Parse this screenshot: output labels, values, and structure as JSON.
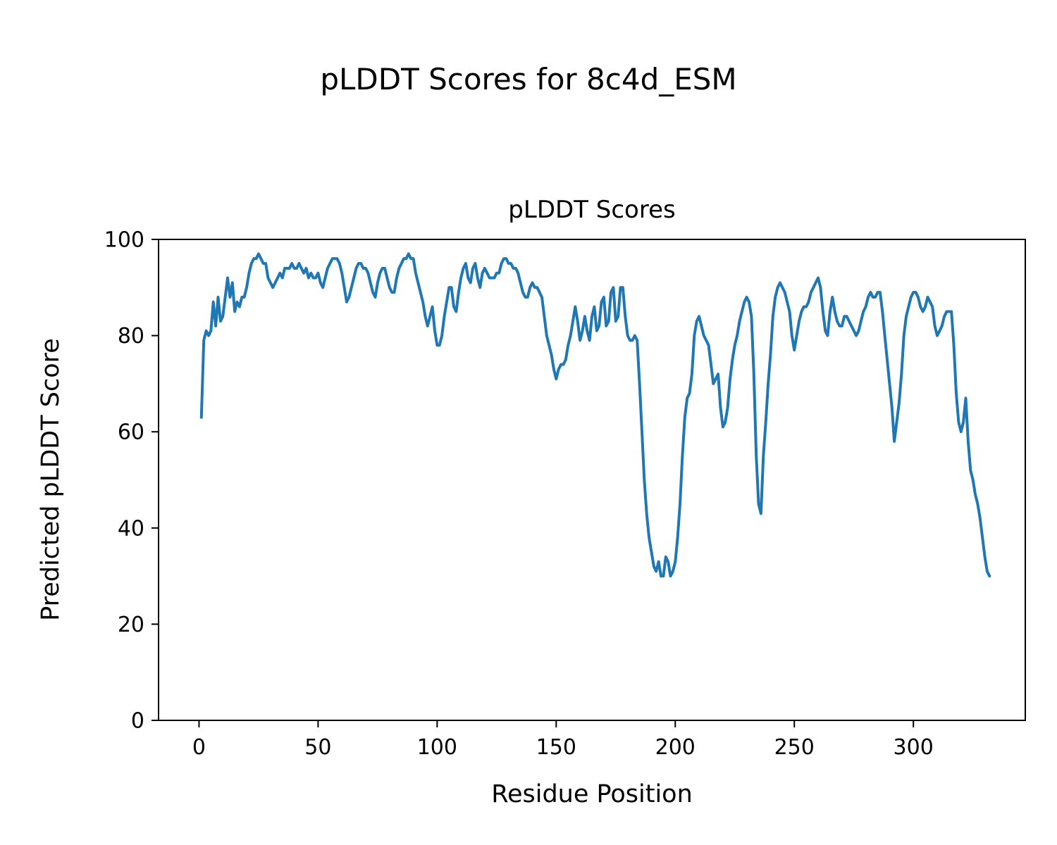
{
  "figure": {
    "suptitle": "pLDDT Scores for 8c4d_ESM"
  },
  "chart_data": {
    "type": "line",
    "title": "pLDDT Scores",
    "xlabel": "Residue Position",
    "ylabel": "Predicted pLDDT Score",
    "xlim": [
      -17,
      347
    ],
    "ylim": [
      0,
      100
    ],
    "x_ticks": [
      0,
      50,
      100,
      150,
      200,
      250,
      300
    ],
    "y_ticks": [
      0,
      20,
      40,
      60,
      80,
      100
    ],
    "grid": false,
    "legend_position": "none",
    "line_color": "#1f77b4",
    "line_width": 4,
    "series_name": "pLDDT",
    "x": [
      1,
      2,
      3,
      4,
      5,
      6,
      7,
      8,
      9,
      10,
      11,
      12,
      13,
      14,
      15,
      16,
      17,
      18,
      19,
      20,
      21,
      22,
      23,
      24,
      25,
      26,
      27,
      28,
      29,
      30,
      31,
      32,
      33,
      34,
      35,
      36,
      37,
      38,
      39,
      40,
      41,
      42,
      43,
      44,
      45,
      46,
      47,
      48,
      49,
      50,
      51,
      52,
      53,
      54,
      55,
      56,
      57,
      58,
      59,
      60,
      61,
      62,
      63,
      64,
      65,
      66,
      67,
      68,
      69,
      70,
      71,
      72,
      73,
      74,
      75,
      76,
      77,
      78,
      79,
      80,
      81,
      82,
      83,
      84,
      85,
      86,
      87,
      88,
      89,
      90,
      91,
      92,
      93,
      94,
      95,
      96,
      97,
      98,
      99,
      100,
      101,
      102,
      103,
      104,
      105,
      106,
      107,
      108,
      109,
      110,
      111,
      112,
      113,
      114,
      115,
      116,
      117,
      118,
      119,
      120,
      121,
      122,
      123,
      124,
      125,
      126,
      127,
      128,
      129,
      130,
      131,
      132,
      133,
      134,
      135,
      136,
      137,
      138,
      139,
      140,
      141,
      142,
      143,
      144,
      145,
      146,
      147,
      148,
      149,
      150,
      151,
      152,
      153,
      154,
      155,
      156,
      157,
      158,
      159,
      160,
      161,
      162,
      163,
      164,
      165,
      166,
      167,
      168,
      169,
      170,
      171,
      172,
      173,
      174,
      175,
      176,
      177,
      178,
      179,
      180,
      181,
      182,
      183,
      184,
      185,
      186,
      187,
      188,
      189,
      190,
      191,
      192,
      193,
      194,
      195,
      196,
      197,
      198,
      199,
      200,
      201,
      202,
      203,
      204,
      205,
      206,
      207,
      208,
      209,
      210,
      211,
      212,
      213,
      214,
      215,
      216,
      217,
      218,
      219,
      220,
      221,
      222,
      223,
      224,
      225,
      226,
      227,
      228,
      229,
      230,
      231,
      232,
      233,
      234,
      235,
      236,
      237,
      238,
      239,
      240,
      241,
      242,
      243,
      244,
      245,
      246,
      247,
      248,
      249,
      250,
      251,
      252,
      253,
      254,
      255,
      256,
      257,
      258,
      259,
      260,
      261,
      262,
      263,
      264,
      265,
      266,
      267,
      268,
      269,
      270,
      271,
      272,
      273,
      274,
      275,
      276,
      277,
      278,
      279,
      280,
      281,
      282,
      283,
      284,
      285,
      286,
      287,
      288,
      289,
      290,
      291,
      292,
      293,
      294,
      295,
      296,
      297,
      298,
      299,
      300,
      301,
      302,
      303,
      304,
      305,
      306,
      307,
      308,
      309,
      310,
      311,
      312,
      313,
      314,
      315,
      316,
      317,
      318,
      319,
      320,
      321,
      322,
      323,
      324,
      325,
      326,
      327,
      328,
      329,
      330,
      331,
      332
    ],
    "y": [
      63,
      79,
      81,
      80,
      81,
      87,
      82,
      88,
      83,
      84,
      88,
      92,
      88,
      91,
      85,
      87,
      86,
      88,
      88,
      90,
      93,
      95,
      96,
      96,
      97,
      96,
      95,
      95,
      92,
      91,
      90,
      91,
      92,
      93,
      92,
      94,
      94,
      94,
      95,
      94,
      94,
      95,
      94,
      93,
      94,
      92,
      93,
      92,
      92,
      93,
      91,
      90,
      92,
      94,
      95,
      96,
      96,
      96,
      95,
      93,
      90,
      87,
      88,
      90,
      92,
      94,
      95,
      95,
      94,
      94,
      93,
      91,
      89,
      88,
      91,
      93,
      94,
      94,
      92,
      90,
      89,
      89,
      92,
      94,
      95,
      96,
      96,
      97,
      96,
      96,
      93,
      91,
      89,
      87,
      84,
      82,
      84,
      86,
      81,
      78,
      78,
      80,
      84,
      87,
      90,
      90,
      86,
      85,
      89,
      92,
      94,
      95,
      92,
      91,
      94,
      95,
      92,
      90,
      93,
      94,
      93,
      92,
      92,
      92,
      93,
      93,
      95,
      96,
      96,
      95,
      95,
      94,
      94,
      93,
      91,
      89,
      88,
      88,
      90,
      91,
      90,
      90,
      89,
      88,
      84,
      80,
      78,
      76,
      73,
      71,
      73,
      74,
      74,
      75,
      78,
      80,
      83,
      86,
      83,
      79,
      81,
      84,
      81,
      79,
      84,
      86,
      81,
      82,
      87,
      88,
      82,
      83,
      89,
      90,
      83,
      84,
      90,
      90,
      84,
      80,
      79,
      79,
      80,
      79,
      70,
      60,
      50,
      43,
      38,
      35,
      32,
      31,
      33,
      30,
      30,
      34,
      33,
      30,
      31,
      33,
      38,
      45,
      55,
      63,
      67,
      68,
      72,
      80,
      83,
      84,
      82,
      80,
      79,
      78,
      74,
      70,
      71,
      72,
      65,
      61,
      62,
      65,
      71,
      75,
      78,
      80,
      83,
      85,
      87,
      88,
      87,
      84,
      72,
      55,
      45,
      43,
      55,
      62,
      70,
      76,
      84,
      88,
      90,
      91,
      90,
      89,
      87,
      85,
      80,
      77,
      80,
      83,
      85,
      86,
      86,
      87,
      89,
      90,
      91,
      92,
      90,
      85,
      81,
      80,
      85,
      88,
      85,
      83,
      82,
      82,
      84,
      84,
      83,
      82,
      81,
      80,
      81,
      83,
      85,
      86,
      88,
      89,
      88,
      88,
      89,
      89,
      85,
      80,
      75,
      70,
      65,
      58,
      62,
      66,
      72,
      80,
      84,
      86,
      88,
      89,
      89,
      88,
      86,
      85,
      86,
      88,
      87,
      86,
      82,
      80,
      81,
      82,
      84,
      85,
      85,
      85,
      78,
      68,
      62,
      60,
      62,
      67,
      58,
      52,
      50,
      47,
      45,
      42,
      38,
      34,
      31,
      30
    ]
  }
}
